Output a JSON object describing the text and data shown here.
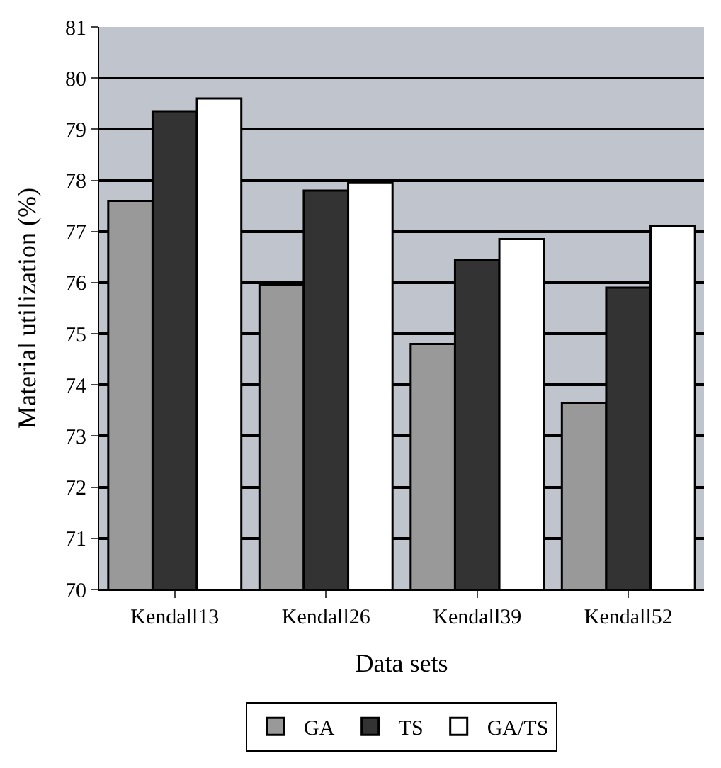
{
  "chart_data": {
    "type": "bar",
    "xlabel": "Data sets",
    "ylabel": "Material utilization (%)",
    "categories": [
      "Kendall13",
      "Kendall26",
      "Kendall39",
      "Kendall52"
    ],
    "series": [
      {
        "name": "GA",
        "color": "#999999",
        "values": [
          77.6,
          75.95,
          74.8,
          73.65
        ]
      },
      {
        "name": "TS",
        "color": "#333333",
        "values": [
          79.35,
          77.8,
          76.45,
          75.9
        ]
      },
      {
        "name": "GA/TS",
        "color": "#ffffff",
        "values": [
          79.6,
          77.95,
          76.85,
          77.1
        ]
      }
    ],
    "ylim": [
      70,
      81
    ],
    "yticks": [
      70,
      71,
      72,
      73,
      74,
      75,
      76,
      77,
      78,
      79,
      80,
      81
    ],
    "grid": "y",
    "legend": "bottom"
  }
}
